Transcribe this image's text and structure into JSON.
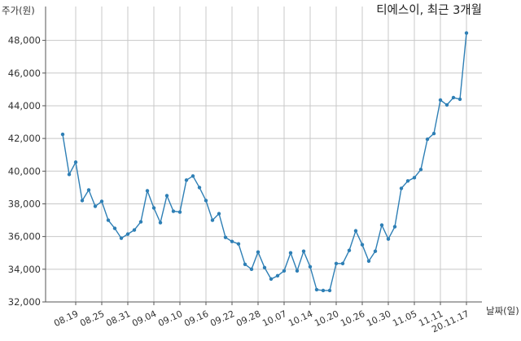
{
  "chart_data": {
    "type": "line",
    "title": "티에스이, 최근 3개월",
    "xlabel": "날짜(일)",
    "ylabel": "주가(원)",
    "ylim": [
      32000,
      49000
    ],
    "yticks": [
      32000,
      34000,
      36000,
      38000,
      40000,
      42000,
      44000,
      46000,
      48000
    ],
    "ytick_labels": [
      "32,000",
      "34,000",
      "36,000",
      "38,000",
      "40,000",
      "42,000",
      "44,000",
      "46,000",
      "48,000"
    ],
    "xtick_labels": [
      "08.19",
      "08.25",
      "08.31",
      "09.04",
      "09.10",
      "09.16",
      "09.22",
      "09.28",
      "10.07",
      "10.14",
      "10.20",
      "10.26",
      "10.30",
      "11.05",
      "11.11",
      "20.11.17"
    ],
    "xtick_index": [
      2,
      6,
      10,
      14,
      18,
      22,
      26,
      30,
      34,
      38,
      42,
      46,
      50,
      54,
      58,
      62
    ],
    "grid": true,
    "line_color": "#2e7fb5",
    "values": [
      42250,
      39800,
      40550,
      38200,
      38850,
      37850,
      38150,
      37000,
      36500,
      35900,
      36150,
      36400,
      36900,
      38800,
      37750,
      36850,
      38500,
      37550,
      37500,
      39450,
      39700,
      39000,
      38200,
      37000,
      37400,
      35950,
      35700,
      35550,
      34300,
      34000,
      35050,
      34100,
      33400,
      33600,
      33900,
      35000,
      33900,
      35100,
      34150,
      32750,
      32700,
      32700,
      34350,
      34350,
      35150,
      36350,
      35500,
      34500,
      35100,
      36700,
      35850,
      36600,
      38950,
      39400,
      39600,
      40100,
      41950,
      42300,
      44350,
      44050,
      44500,
      44400,
      48450
    ]
  }
}
